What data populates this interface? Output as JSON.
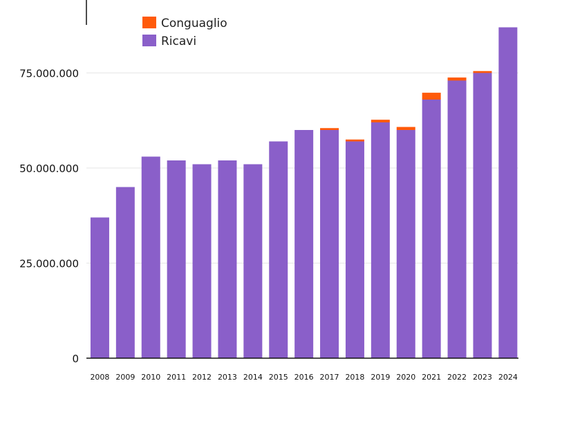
{
  "chart_data": {
    "type": "bar",
    "stacked": true,
    "categories": [
      "2008",
      "2009",
      "2010",
      "2011",
      "2012",
      "2013",
      "2014",
      "2015",
      "2016",
      "2017",
      "2018",
      "2019",
      "2020",
      "2021",
      "2022",
      "2023",
      "2024"
    ],
    "series": [
      {
        "name": "Ricavi",
        "color": "#8a5fc9",
        "values": [
          37000000,
          45000000,
          53000000,
          52000000,
          51000000,
          52000000,
          51000000,
          57000000,
          60000000,
          60000000,
          57000000,
          62000000,
          60000000,
          68000000,
          73000000,
          75000000,
          87000000
        ]
      },
      {
        "name": "Conguaglio",
        "color": "#ff5a0a",
        "values": [
          0,
          0,
          0,
          0,
          0,
          0,
          0,
          0,
          0,
          500000,
          500000,
          700000,
          800000,
          1800000,
          800000,
          500000,
          0
        ]
      }
    ],
    "y_ticks": [
      {
        "value": 0,
        "label": "0"
      },
      {
        "value": 25000000,
        "label": "25.000.000"
      },
      {
        "value": 50000000,
        "label": "50.000.000"
      },
      {
        "value": 75000000,
        "label": "75.000.000"
      }
    ],
    "ylim": [
      0,
      95000000
    ],
    "grid": true,
    "legend": {
      "position": "top-left",
      "order": [
        "Conguaglio",
        "Ricavi"
      ]
    },
    "title": "",
    "xlabel": "",
    "ylabel": ""
  }
}
